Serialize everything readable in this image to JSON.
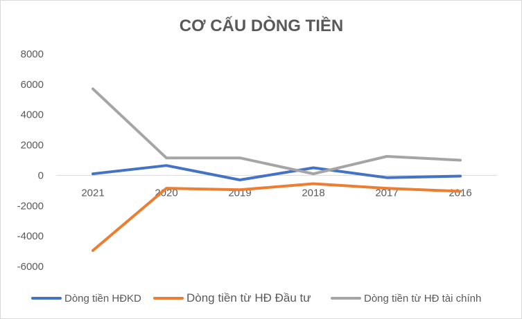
{
  "chart_data": {
    "type": "line",
    "title": "CƠ CẤU DÒNG TIỀN",
    "categories": [
      "2021",
      "2020",
      "2019",
      "2018",
      "2017",
      "2016"
    ],
    "ylim": [
      -6000,
      8000
    ],
    "yticks": [
      8000,
      6000,
      4000,
      2000,
      0,
      -2000,
      -4000,
      -6000
    ],
    "grid": false,
    "legend_position": "bottom",
    "series": [
      {
        "name": "Dòng tiền HĐKD",
        "color": "#4472C4",
        "values": [
          100,
          650,
          -300,
          500,
          -150,
          -50
        ]
      },
      {
        "name": "Dòng tiền từ HĐ Đầu tư",
        "color": "#ED7D31",
        "values": [
          -4950,
          -850,
          -950,
          -550,
          -850,
          -1050
        ]
      },
      {
        "name": "Dòng tiền từ HĐ tài chính",
        "color": "#A5A5A5",
        "values": [
          5700,
          1150,
          1150,
          100,
          1250,
          1000
        ]
      }
    ]
  }
}
